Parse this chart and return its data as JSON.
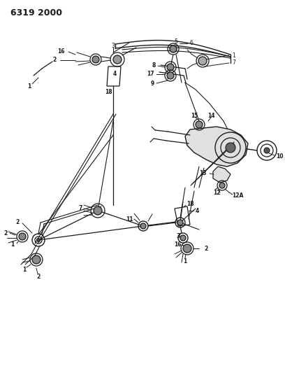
{
  "title": "6319 2000",
  "bg_color": "#ffffff",
  "line_color": "#1a1a1a",
  "fig_width": 4.08,
  "fig_height": 5.33,
  "dpi": 100
}
